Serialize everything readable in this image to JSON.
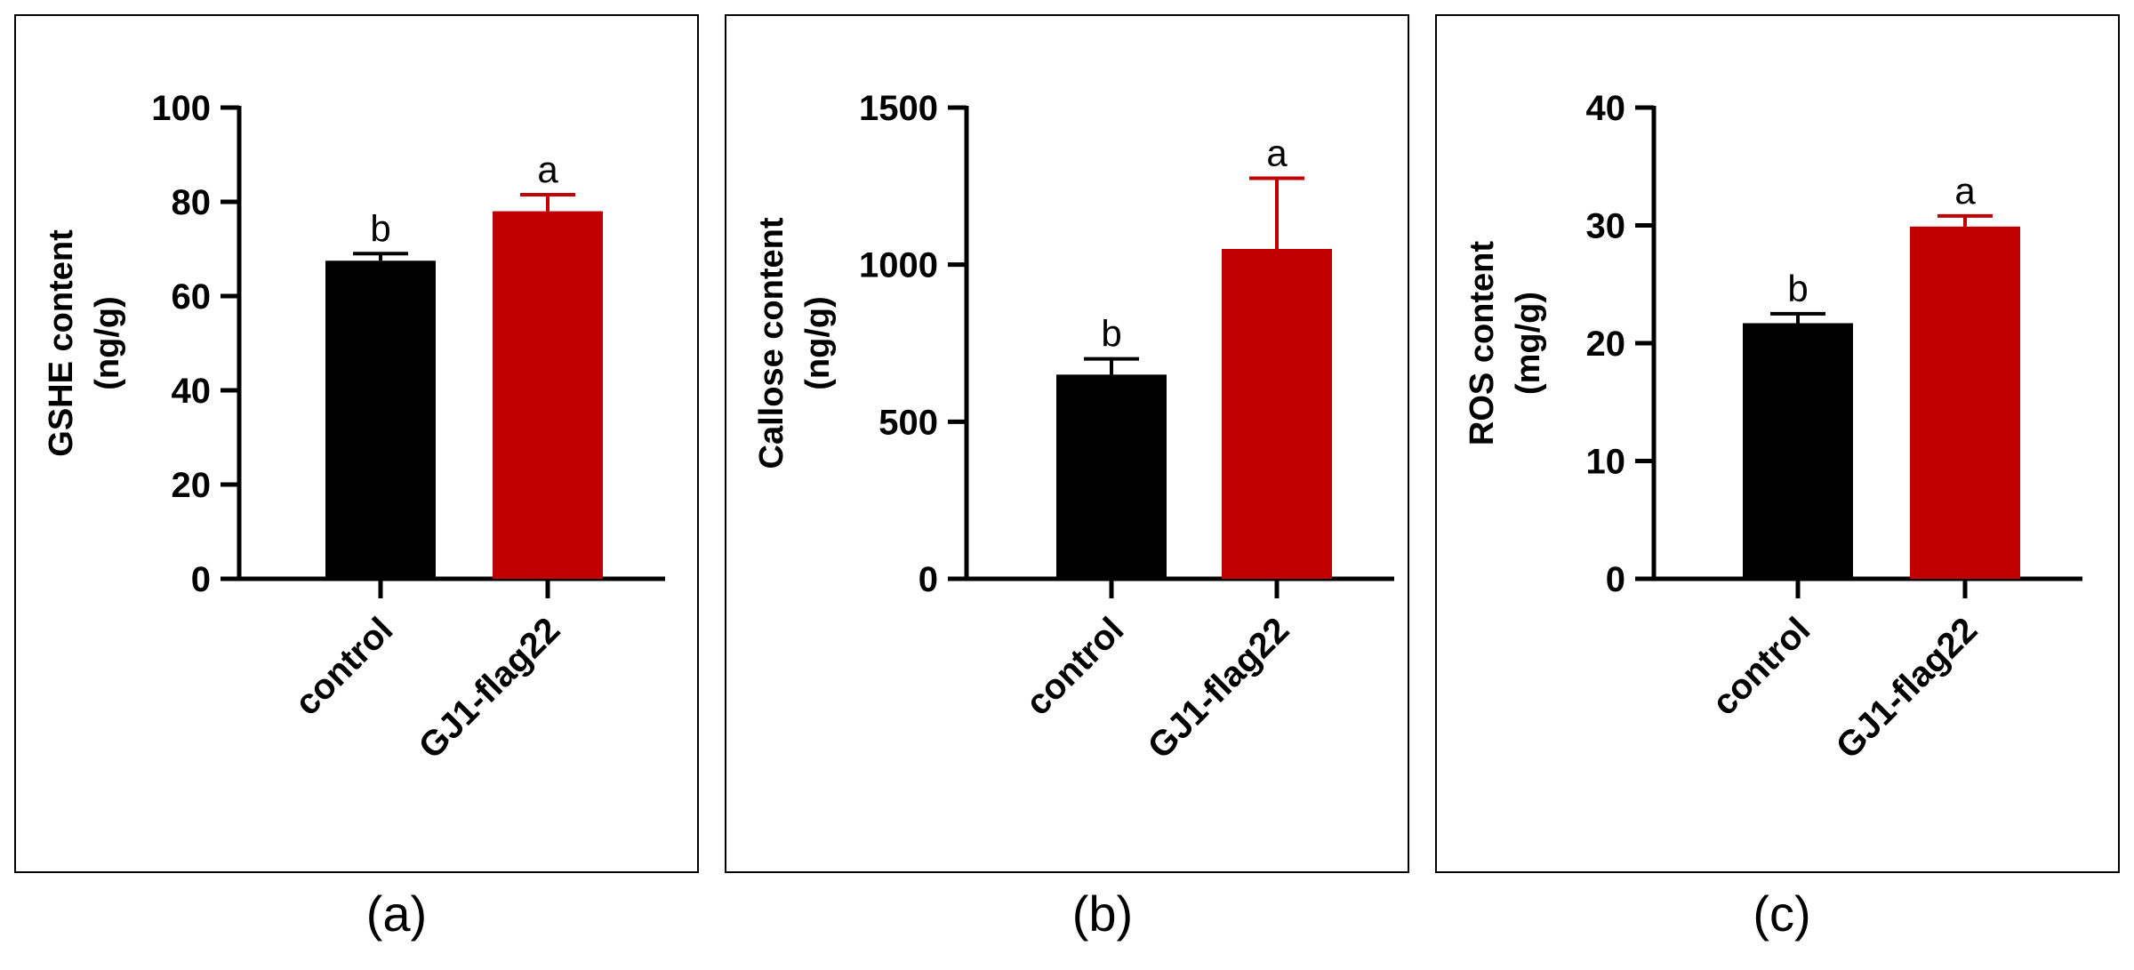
{
  "chart_data": [
    {
      "type": "bar",
      "panel_label": "(a)",
      "ylabel_lines": [
        "GSHE content",
        "(ng/g)"
      ],
      "ylim": [
        0,
        100
      ],
      "yticks": [
        0,
        20,
        40,
        60,
        80,
        100
      ],
      "categories": [
        "control",
        "GJ1-flag22"
      ],
      "values": [
        67.5,
        78
      ],
      "errors": [
        1.5,
        3.5
      ],
      "significance": [
        "b",
        "a"
      ],
      "colors": [
        "#000000",
        "#c00000"
      ]
    },
    {
      "type": "bar",
      "panel_label": "(b)",
      "ylabel_lines": [
        "Callose content",
        "(ng/g)"
      ],
      "ylim": [
        0,
        1500
      ],
      "yticks": [
        0,
        500,
        1000,
        1500
      ],
      "categories": [
        "control",
        "GJ1-flag22"
      ],
      "values": [
        650,
        1050
      ],
      "errors": [
        50,
        225
      ],
      "significance": [
        "b",
        "a"
      ],
      "colors": [
        "#000000",
        "#c00000"
      ]
    },
    {
      "type": "bar",
      "panel_label": "(c)",
      "ylabel_lines": [
        "ROS content",
        "(mg/g)"
      ],
      "ylim": [
        0,
        40
      ],
      "yticks": [
        0,
        10,
        20,
        30,
        40
      ],
      "categories": [
        "control",
        "GJ1-flag22"
      ],
      "values": [
        21.7,
        29.9
      ],
      "errors": [
        0.8,
        0.9
      ],
      "significance": [
        "b",
        "a"
      ],
      "colors": [
        "#000000",
        "#c00000"
      ]
    }
  ]
}
